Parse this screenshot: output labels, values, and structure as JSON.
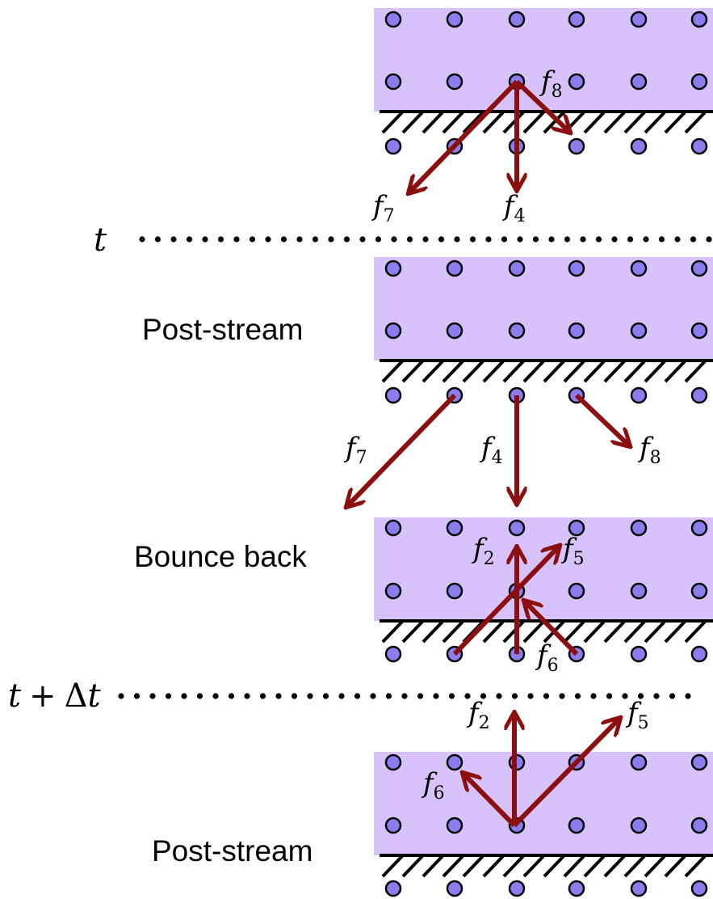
{
  "stages": {
    "post_stream_1": "Post-stream",
    "bounce_back": "Bounce back",
    "post_stream_2": "Post-stream"
  },
  "time_labels": {
    "t": {
      "var": "t"
    },
    "t_dt": {
      "var": "t",
      "plus": "+",
      "delta": "Δ",
      "var2": "t"
    }
  },
  "distribution_labels": {
    "f2": {
      "base": "f",
      "sub": "2"
    },
    "f4": {
      "base": "f",
      "sub": "4"
    },
    "f5": {
      "base": "f",
      "sub": "5"
    },
    "f6": {
      "base": "f",
      "sub": "6"
    },
    "f7": {
      "base": "f",
      "sub": "7"
    },
    "f8": {
      "base": "f",
      "sub": "8"
    }
  },
  "colors": {
    "fluid": "#d8c2fb",
    "node_fill": "#8c7dee",
    "node_stroke": "#000000",
    "arrow": "#8b0f0f",
    "wall": "#000000"
  }
}
